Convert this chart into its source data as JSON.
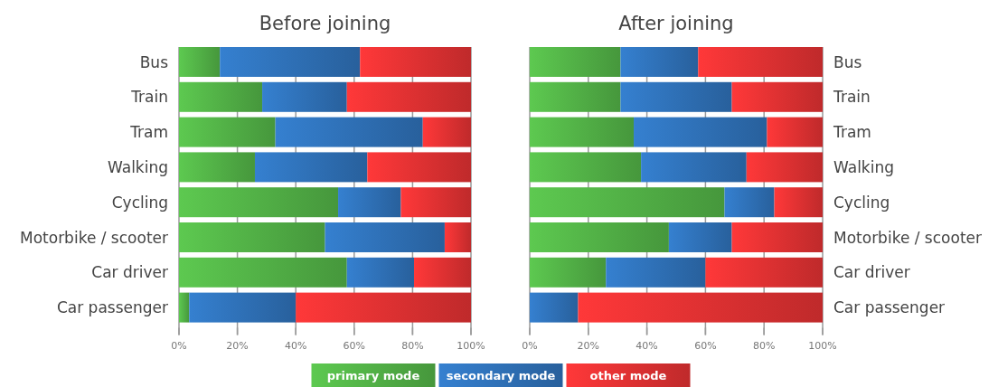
{
  "chart_data": [
    {
      "type": "bar",
      "title": "Before joining",
      "orientation": "horizontal",
      "stacked": true,
      "categories": [
        "Bus",
        "Train",
        "Tram",
        "Walking",
        "Cycling",
        "Motorbike / scooter",
        "Car driver",
        "Car passenger"
      ],
      "series": [
        {
          "name": "primary mode",
          "color": "#4ea843",
          "values": [
            14,
            28.5,
            33,
            26,
            54.5,
            50,
            57.5,
            3.5
          ]
        },
        {
          "name": "secondary mode",
          "color": "#2c6bae",
          "values": [
            48,
            29,
            50.5,
            38.5,
            21.5,
            41,
            23,
            36.5
          ]
        },
        {
          "name": "other mode",
          "color": "#d52f30",
          "values": [
            38,
            42.5,
            16.5,
            35.5,
            24,
            9,
            19.5,
            60
          ]
        }
      ],
      "xlim": [
        0,
        100
      ],
      "xticks": [
        {
          "value": 0,
          "label": "0%"
        },
        {
          "value": 20,
          "label": "20%"
        },
        {
          "value": 40,
          "label": "40%"
        },
        {
          "value": 60,
          "label": "60%"
        },
        {
          "value": 80,
          "label": "80%"
        },
        {
          "value": 100,
          "label": "100%"
        }
      ],
      "grid": "x",
      "legend": "bottom"
    },
    {
      "type": "bar",
      "title": "After joining",
      "orientation": "horizontal",
      "stacked": true,
      "categories": [
        "Bus",
        "Train",
        "Tram",
        "Walking",
        "Cycling",
        "Motorbike / scooter",
        "Car driver",
        "Car passenger"
      ],
      "series": [
        {
          "color": "#4ea843",
          "values": [
            31,
            31,
            35.5,
            38,
            66.5,
            47.5,
            26,
            0
          ]
        },
        {
          "color": "#2c6bae",
          "values": [
            26.5,
            38,
            45.5,
            36,
            17,
            21.5,
            34,
            16.5
          ]
        },
        {
          "color": "#d52f30",
          "values": [
            42.5,
            31,
            19,
            26,
            16.5,
            31,
            40,
            83.5
          ]
        }
      ],
      "xlim": [
        0,
        100
      ],
      "xticks": [
        {
          "value": 0,
          "label": "0%"
        },
        {
          "value": 20,
          "label": "20%"
        },
        {
          "value": 40,
          "label": "40%"
        },
        {
          "value": 60,
          "label": "60%"
        },
        {
          "value": 80,
          "label": "80%"
        },
        {
          "value": 100,
          "label": "100%"
        }
      ],
      "grid": "x"
    }
  ]
}
